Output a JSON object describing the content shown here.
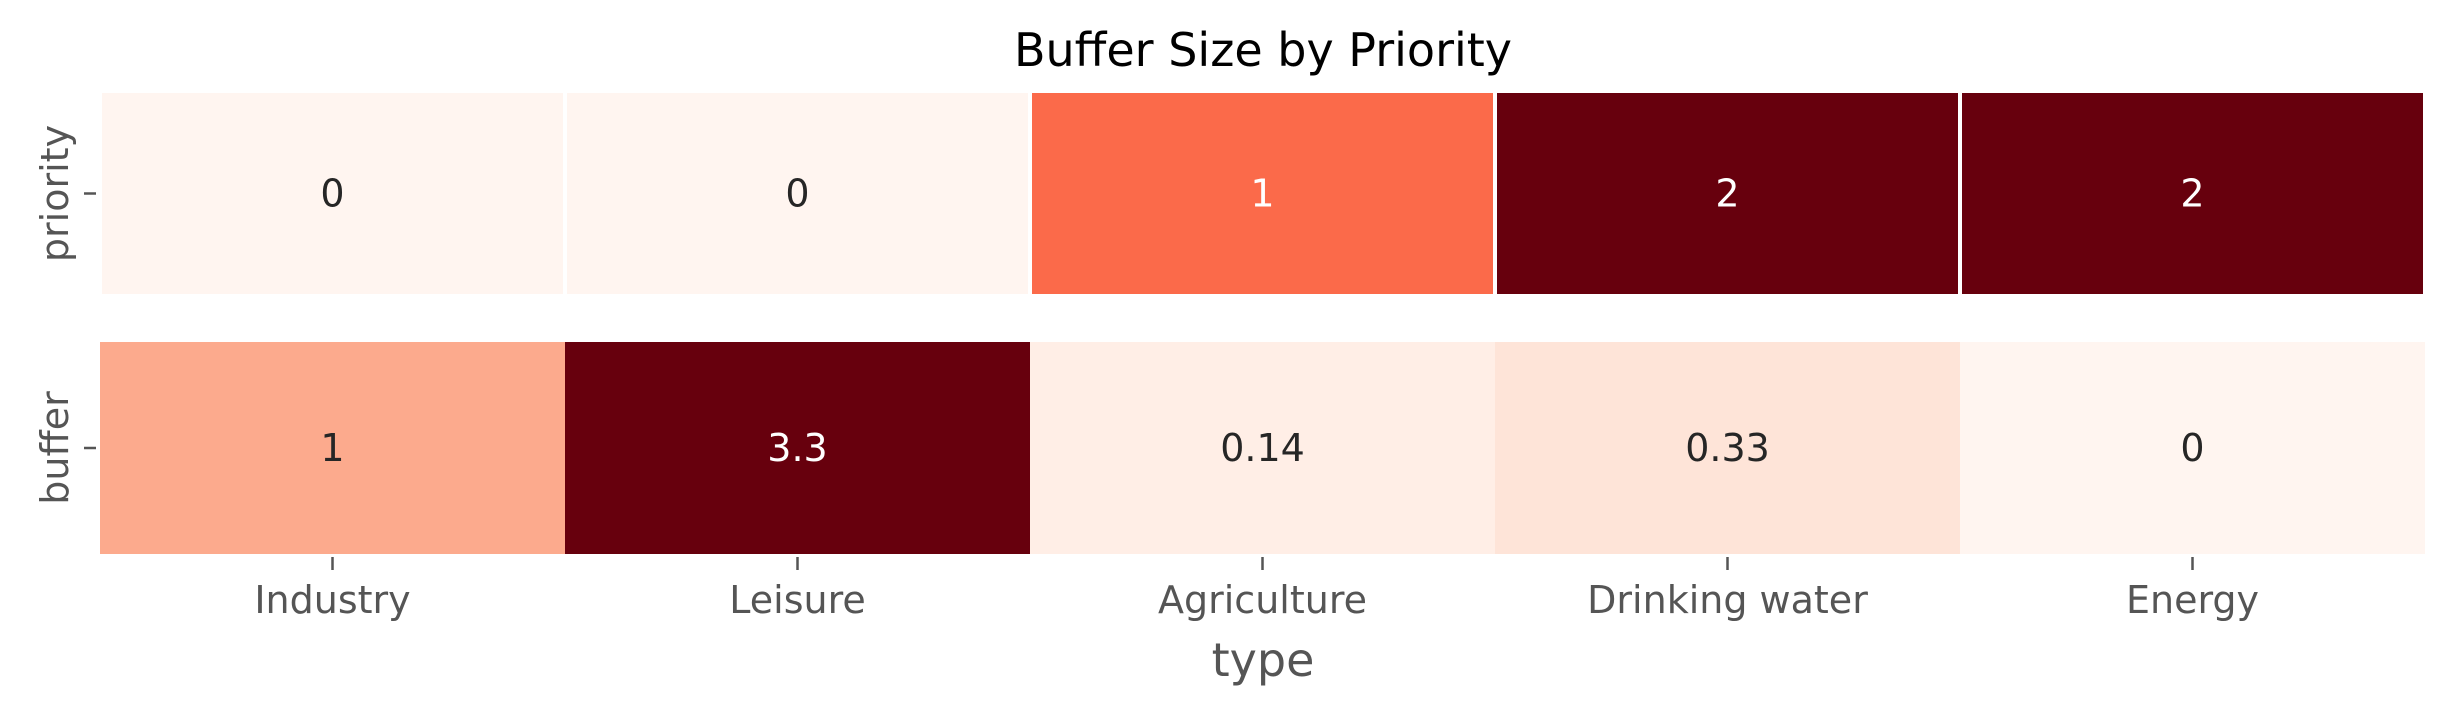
{
  "chart_data": {
    "type": "heatmap",
    "title": "Buffer Size by Priority",
    "xlabel": "type",
    "ylabel": "",
    "colormap": "Reds",
    "grid": false,
    "legend": "none",
    "categories": [
      "Industry",
      "Leisure",
      "Agriculture",
      "Drinking water",
      "Energy"
    ],
    "rows": [
      {
        "label": "priority",
        "values": [
          0,
          0,
          1,
          2,
          2
        ],
        "display": [
          "0",
          "0",
          "1",
          "2",
          "2"
        ],
        "color_range": [
          0,
          2
        ],
        "cell_separators": true
      },
      {
        "label": "buffer",
        "values": [
          1,
          3.3,
          0.14,
          0.33,
          0
        ],
        "display": [
          "1",
          "3.3",
          "0.14",
          "0.33",
          "0"
        ],
        "color_range": [
          0,
          3.3
        ],
        "cell_separators": false
      }
    ]
  }
}
